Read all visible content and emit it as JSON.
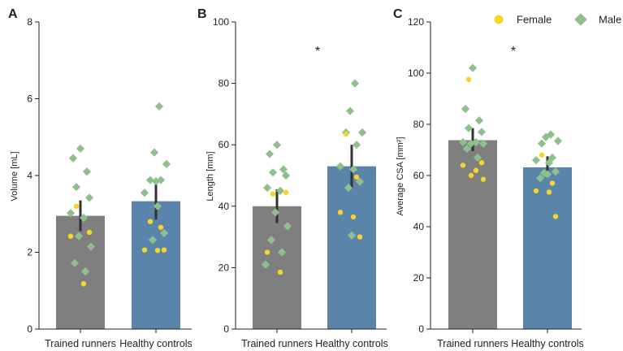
{
  "colors": {
    "trained": "#7f7f7f",
    "controls": "#5a84aa",
    "female": "#f6d52a",
    "male": "#8fbf8c",
    "errorbar": "#333333",
    "axis": "#222222"
  },
  "legend": {
    "female_label": "Female",
    "male_label": "Male",
    "female_marker": "circle",
    "male_marker": "diamond"
  },
  "chart_data": [
    {
      "type": "bar",
      "panel": "A",
      "ylabel": "Volume [mL]",
      "ylim": [
        0,
        8
      ],
      "yticks": [
        0,
        2,
        4,
        6,
        8
      ],
      "categories": [
        "Trained runners",
        "Healthy controls"
      ],
      "values": [
        2.95,
        3.33
      ],
      "errors": [
        {
          "low": 2.55,
          "high": 3.35
        },
        {
          "low": 2.85,
          "high": 3.8
        }
      ],
      "significance": null,
      "points": [
        {
          "category": 0,
          "sex": "male",
          "values": [
            4.7,
            4.45,
            4.1,
            3.7,
            3.42,
            3.02,
            2.9,
            2.42,
            2.15,
            1.72,
            1.5
          ]
        },
        {
          "category": 0,
          "sex": "female",
          "values": [
            3.2,
            2.52,
            2.42,
            1.18
          ]
        },
        {
          "category": 1,
          "sex": "male",
          "values": [
            5.8,
            4.6,
            4.3,
            3.88,
            3.88,
            3.55,
            3.2,
            2.5,
            2.32,
            3.85
          ]
        },
        {
          "category": 1,
          "sex": "female",
          "values": [
            2.8,
            2.65,
            2.06,
            2.05,
            2.06
          ]
        }
      ]
    },
    {
      "type": "bar",
      "panel": "B",
      "ylabel": "Length [mm]",
      "ylim": [
        0,
        100
      ],
      "yticks": [
        0,
        20,
        40,
        60,
        80,
        100
      ],
      "categories": [
        "Trained runners",
        "Healthy controls"
      ],
      "values": [
        40,
        53
      ],
      "errors": [
        {
          "low": 34.5,
          "high": 45.5
        },
        {
          "low": 46,
          "high": 60
        }
      ],
      "significance": "*",
      "points": [
        {
          "category": 0,
          "sex": "male",
          "values": [
            60,
            57,
            52,
            51,
            50,
            46,
            45,
            38,
            33.5,
            29,
            25,
            21
          ]
        },
        {
          "category": 0,
          "sex": "female",
          "values": [
            44,
            44.5,
            25,
            18.5
          ]
        },
        {
          "category": 1,
          "sex": "male",
          "values": [
            80,
            71,
            64,
            64,
            60,
            53,
            52,
            48,
            46,
            30.5
          ]
        },
        {
          "category": 1,
          "sex": "female",
          "values": [
            63.5,
            49.5,
            38,
            36.5,
            30
          ]
        }
      ]
    },
    {
      "type": "bar",
      "panel": "C",
      "ylabel": "Average CSA [mm²]",
      "ylim": [
        0,
        120
      ],
      "yticks": [
        0,
        20,
        40,
        60,
        80,
        100,
        120
      ],
      "categories": [
        "Trained runners",
        "Healthy controls"
      ],
      "values": [
        73.8,
        63.2
      ],
      "errors": [
        {
          "low": 69.5,
          "high": 78.5
        },
        {
          "low": 59.5,
          "high": 67.5
        }
      ],
      "significance": "*",
      "points": [
        {
          "category": 0,
          "sex": "male",
          "values": [
            102,
            86,
            81.5,
            78.5,
            77,
            73,
            73,
            72.5,
            72.5,
            70.5,
            67
          ]
        },
        {
          "category": 0,
          "sex": "female",
          "values": [
            97.5,
            65,
            64,
            62,
            60,
            58.5
          ]
        },
        {
          "category": 1,
          "sex": "male",
          "values": [
            76,
            75,
            73.5,
            72.5,
            67,
            66,
            65,
            61.5,
            61,
            60.5,
            59
          ]
        },
        {
          "category": 1,
          "sex": "female",
          "values": [
            68,
            57,
            54,
            53.5,
            44
          ]
        }
      ]
    }
  ]
}
